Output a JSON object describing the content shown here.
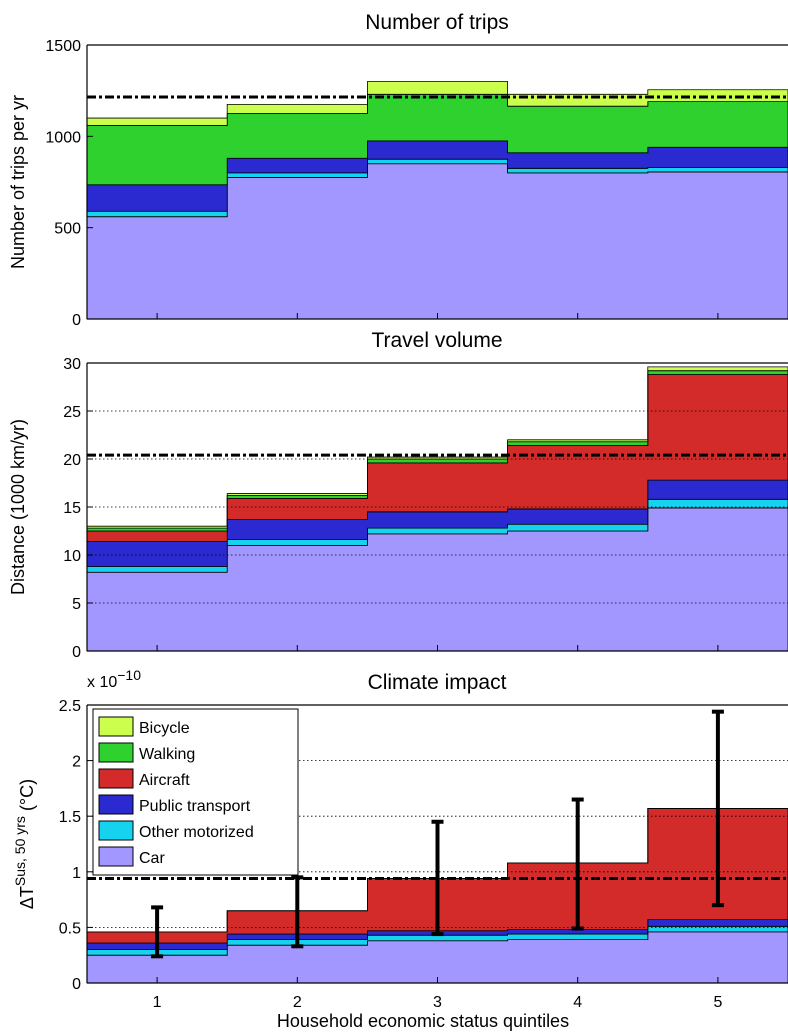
{
  "chart_data": [
    {
      "type": "area",
      "title": "Number of trips",
      "ylabel": "Number of trips per yr",
      "xlabel": "",
      "ylim": [
        0,
        1500
      ],
      "yticks": [
        0,
        500,
        1000,
        1500
      ],
      "categories": [
        "1",
        "2",
        "3",
        "4",
        "5"
      ],
      "stacked": true,
      "step": true,
      "grid": false,
      "reference_line": 1215,
      "series": [
        {
          "name": "Car",
          "values": [
            560,
            775,
            850,
            800,
            805
          ]
        },
        {
          "name": "Other motorized",
          "values": [
            30,
            25,
            25,
            25,
            25
          ]
        },
        {
          "name": "Public transport",
          "values": [
            145,
            80,
            100,
            85,
            110
          ]
        },
        {
          "name": "Walking",
          "values": [
            325,
            245,
            255,
            255,
            250
          ]
        },
        {
          "name": "Bicycle",
          "values": [
            40,
            50,
            70,
            65,
            65
          ]
        }
      ]
    },
    {
      "type": "area",
      "title": "Travel volume",
      "ylabel": "Distance (1000 km/yr)",
      "xlabel": "",
      "ylim": [
        0,
        30
      ],
      "yticks": [
        0,
        5,
        10,
        15,
        20,
        25,
        30
      ],
      "categories": [
        "1",
        "2",
        "3",
        "4",
        "5"
      ],
      "stacked": true,
      "step": true,
      "grid": true,
      "reference_line": 20.4,
      "series": [
        {
          "name": "Car",
          "values": [
            8.2,
            11.0,
            12.2,
            12.5,
            14.9
          ]
        },
        {
          "name": "Other motorized",
          "values": [
            0.6,
            0.6,
            0.6,
            0.7,
            0.9
          ]
        },
        {
          "name": "Public transport",
          "values": [
            2.6,
            2.1,
            1.7,
            1.6,
            2.0
          ]
        },
        {
          "name": "Aircraft",
          "values": [
            1.1,
            2.2,
            5.1,
            6.6,
            11.0
          ]
        },
        {
          "name": "Walking",
          "values": [
            0.3,
            0.3,
            0.4,
            0.4,
            0.4
          ]
        },
        {
          "name": "Bicycle",
          "values": [
            0.2,
            0.2,
            0.2,
            0.2,
            0.4
          ]
        }
      ]
    },
    {
      "type": "area",
      "title": "Climate impact",
      "ylabel": "ΔT^{Sus, 50 yrs} (°C)",
      "ylabel_main": "ΔT",
      "ylabel_sup": "Sus, 50 yrs",
      "ylabel_unit": " (°C)",
      "xlabel": "Household economic status quintiles",
      "y_multiplier": "x 10",
      "y_multiplier_exp": "−10",
      "ylim": [
        0,
        2.5
      ],
      "yticks": [
        0,
        0.5,
        1,
        1.5,
        2,
        2.5
      ],
      "categories": [
        "1",
        "2",
        "3",
        "4",
        "5"
      ],
      "stacked": true,
      "step": true,
      "grid": true,
      "reference_line": 0.94,
      "legend_position": "top-left",
      "series": [
        {
          "name": "Car",
          "values": [
            0.25,
            0.34,
            0.38,
            0.39,
            0.46
          ]
        },
        {
          "name": "Other motorized",
          "values": [
            0.05,
            0.05,
            0.05,
            0.05,
            0.05
          ]
        },
        {
          "name": "Public transport",
          "values": [
            0.06,
            0.05,
            0.04,
            0.04,
            0.06
          ]
        },
        {
          "name": "Aircraft",
          "values": [
            0.1,
            0.21,
            0.47,
            0.6,
            1.0
          ]
        },
        {
          "name": "Walking",
          "values": [
            0,
            0,
            0,
            0,
            0
          ]
        },
        {
          "name": "Bicycle",
          "values": [
            0,
            0,
            0,
            0,
            0
          ]
        }
      ],
      "error_bars": [
        {
          "x": "1",
          "center": 0.46,
          "low": 0.24,
          "high": 0.68
        },
        {
          "x": "2",
          "center": 0.64,
          "low": 0.33,
          "high": 0.95
        },
        {
          "x": "3",
          "center": 0.94,
          "low": 0.44,
          "high": 1.45
        },
        {
          "x": "4",
          "center": 1.07,
          "low": 0.49,
          "high": 1.65
        },
        {
          "x": "5",
          "center": 1.57,
          "low": 0.7,
          "high": 2.44
        }
      ]
    }
  ],
  "legend": {
    "items": [
      {
        "name": "Bicycle",
        "color": "#ccff4d"
      },
      {
        "name": "Walking",
        "color": "#2ed12e"
      },
      {
        "name": "Aircraft",
        "color": "#d32a2a"
      },
      {
        "name": "Public transport",
        "color": "#2a2ad0"
      },
      {
        "name": "Other motorized",
        "color": "#15d3ee"
      },
      {
        "name": "Car",
        "color": "#a296ff"
      }
    ]
  },
  "colors": {
    "Car": "#a296ff",
    "Other motorized": "#15d3ee",
    "Public transport": "#2a2ad0",
    "Aircraft": "#d32a2a",
    "Walking": "#2ed12e",
    "Bicycle": "#ccff4d"
  }
}
